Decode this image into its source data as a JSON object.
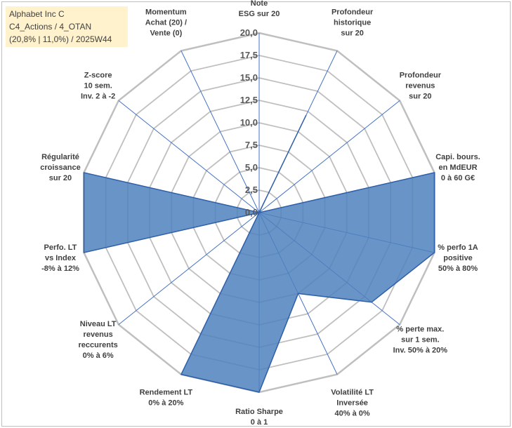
{
  "title_box": {
    "line1": "Alphabet Inc C",
    "line2": "C4_Actions / 4_OTAN",
    "line3": "(20,8% | 11,0%) / 2025W44"
  },
  "chart_data": {
    "type": "radar",
    "title": "Alphabet Inc C",
    "rlim": [
      0,
      20
    ],
    "ticks": [
      "0,0",
      "2,5",
      "5,0",
      "7,5",
      "10,0",
      "12,5",
      "15,0",
      "17,5",
      "20,0"
    ],
    "tick_values": [
      0,
      2.5,
      5,
      7.5,
      10,
      12.5,
      15,
      17.5,
      20
    ],
    "axes": [
      {
        "label": [
          "Note",
          "ESG sur 20"
        ],
        "value": 0
      },
      {
        "label": [
          "Profondeur",
          "historique",
          "sur 20"
        ],
        "value": 12
      },
      {
        "label": [
          "Profondeur",
          "revenus",
          "sur 20"
        ],
        "value": 0
      },
      {
        "label": [
          "Capi. bours.",
          "en MdEUR",
          "0 à 60 G€"
        ],
        "value": 20
      },
      {
        "label": [
          "% perfo 1A",
          "positive",
          "50% à 80%"
        ],
        "value": 20
      },
      {
        "label": [
          "% perte max.",
          "sur 1 sem.",
          "Inv. 50% à 20%"
        ],
        "value": 16
      },
      {
        "label": [
          "Volatilité LT",
          "Inversée",
          "40% à 0%"
        ],
        "value": 10
      },
      {
        "label": [
          "Ratio Sharpe",
          "0 à 1"
        ],
        "value": 20
      },
      {
        "label": [
          "Rendement LT",
          "0% à 20%"
        ],
        "value": 20
      },
      {
        "label": [
          "Niveau LT",
          "revenus",
          "reccurents",
          "0% à 6%"
        ],
        "value": 0
      },
      {
        "label": [
          "Perfo. LT",
          "vs Index",
          "-8% à 12%"
        ],
        "value": 20
      },
      {
        "label": [
          "Régularité",
          "croissance",
          "sur 20"
        ],
        "value": 20
      },
      {
        "label": [
          "Z-score",
          "10 sem.",
          "Inv. 2 à -2"
        ],
        "value": 0
      },
      {
        "label": [
          "Momentum",
          "Achat (20) /",
          "Vente (0)"
        ],
        "value": 0
      }
    ],
    "colors": {
      "fill": "#4f81bd",
      "stroke": "#2e5fa8",
      "grid": "#bfbfbf",
      "spoke": "#4472c4"
    }
  }
}
